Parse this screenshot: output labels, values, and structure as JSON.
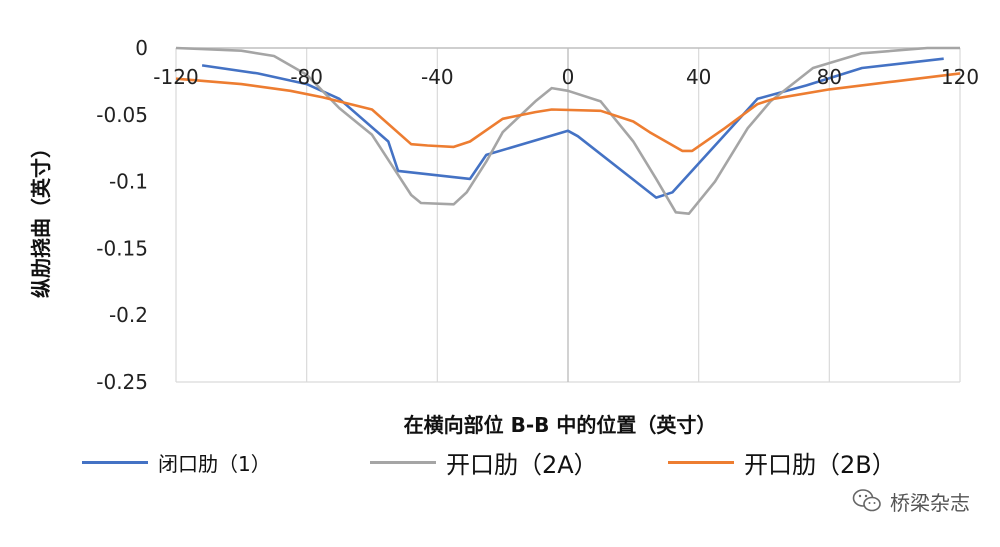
{
  "chart_data": {
    "type": "line",
    "xlabel": "在横向部位 B-B 中的位置（英寸）",
    "ylabel": "纵肋挠曲（英寸）",
    "xlim": [
      -120,
      120
    ],
    "ylim": [
      -0.25,
      0
    ],
    "x_ticks": [
      -120,
      -80,
      -40,
      0,
      40,
      80,
      120
    ],
    "y_ticks": [
      0,
      -0.05,
      -0.1,
      -0.15,
      -0.2,
      -0.25
    ],
    "x_tick_labels": [
      "-120",
      "-80",
      "-40",
      "0",
      "40",
      "80",
      "120"
    ],
    "y_tick_labels": [
      "0",
      "-0.05",
      "-0.1",
      "-0.15",
      "-0.2",
      "-0.25"
    ],
    "grid": "vertical major gridlines",
    "legend_position": "bottom",
    "series": [
      {
        "name": "闭口肋（1）",
        "color": "#4472C4",
        "points": [
          [
            -112,
            -0.013
          ],
          [
            -95,
            -0.019
          ],
          [
            -80,
            -0.027
          ],
          [
            -70,
            -0.038
          ],
          [
            -55,
            -0.07
          ],
          [
            -52,
            -0.092
          ],
          [
            -30,
            -0.098
          ],
          [
            -25,
            -0.08
          ],
          [
            0,
            -0.062
          ],
          [
            3,
            -0.066
          ],
          [
            27,
            -0.112
          ],
          [
            32,
            -0.108
          ],
          [
            58,
            -0.038
          ],
          [
            73,
            -0.028
          ],
          [
            90,
            -0.015
          ],
          [
            115,
            -0.008
          ]
        ]
      },
      {
        "name": "开口肋（2A）",
        "color": "#A5A5A5",
        "points": [
          [
            -120,
            0
          ],
          [
            -100,
            -0.002
          ],
          [
            -90,
            -0.006
          ],
          [
            -80,
            -0.02
          ],
          [
            -70,
            -0.045
          ],
          [
            -60,
            -0.065
          ],
          [
            -48,
            -0.11
          ],
          [
            -45,
            -0.116
          ],
          [
            -35,
            -0.117
          ],
          [
            -31,
            -0.108
          ],
          [
            -25,
            -0.085
          ],
          [
            -20,
            -0.063
          ],
          [
            -10,
            -0.04
          ],
          [
            -5,
            -0.03
          ],
          [
            0,
            -0.032
          ],
          [
            10,
            -0.04
          ],
          [
            20,
            -0.07
          ],
          [
            27,
            -0.098
          ],
          [
            33,
            -0.123
          ],
          [
            37,
            -0.124
          ],
          [
            45,
            -0.1
          ],
          [
            55,
            -0.06
          ],
          [
            62,
            -0.04
          ],
          [
            75,
            -0.015
          ],
          [
            90,
            -0.004
          ],
          [
            110,
            0
          ],
          [
            120,
            0
          ]
        ]
      },
      {
        "name": "开口肋（2B）",
        "color": "#ED7D31",
        "points": [
          [
            -120,
            -0.023
          ],
          [
            -100,
            -0.027
          ],
          [
            -85,
            -0.032
          ],
          [
            -75,
            -0.037
          ],
          [
            -60,
            -0.046
          ],
          [
            -48,
            -0.072
          ],
          [
            -43,
            -0.073
          ],
          [
            -35,
            -0.074
          ],
          [
            -30,
            -0.07
          ],
          [
            -20,
            -0.053
          ],
          [
            -10,
            -0.048
          ],
          [
            -5,
            -0.046
          ],
          [
            10,
            -0.047
          ],
          [
            20,
            -0.055
          ],
          [
            25,
            -0.063
          ],
          [
            35,
            -0.077
          ],
          [
            38,
            -0.077
          ],
          [
            48,
            -0.06
          ],
          [
            58,
            -0.042
          ],
          [
            63,
            -0.038
          ],
          [
            80,
            -0.031
          ],
          [
            100,
            -0.025
          ],
          [
            120,
            -0.019
          ]
        ]
      }
    ]
  },
  "watermark": {
    "icon": "wechat-icon",
    "text": "桥梁杂志"
  }
}
